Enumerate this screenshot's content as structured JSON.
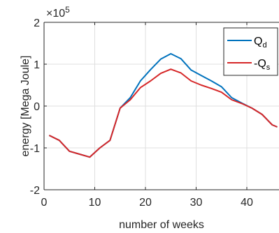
{
  "chart_data": {
    "type": "line",
    "title": "",
    "xlabel": "number of weeks",
    "ylabel": "energy [Mega Joule]",
    "y_exponent_base": "×10",
    "y_exponent_power": "5",
    "xlim": [
      0,
      46
    ],
    "ylim": [
      -2,
      2
    ],
    "xticks": [
      0,
      10,
      20,
      30,
      40
    ],
    "xtick_labels": [
      "0",
      "10",
      "20",
      "30",
      "40"
    ],
    "yticks": [
      -2,
      -1,
      0,
      1,
      2
    ],
    "ytick_labels": [
      "-2",
      "-1",
      "0",
      "1",
      "2"
    ],
    "grid": true,
    "legend_position": "top-right",
    "series": [
      {
        "name": "Q",
        "name_subscript": "d",
        "color": "#0072BD",
        "x": [
          1,
          3,
          5,
          7,
          9,
          11,
          13,
          15,
          17,
          19,
          21,
          23,
          25,
          27,
          29,
          31,
          33,
          35,
          37,
          39,
          41,
          43,
          45,
          46
        ],
        "y": [
          -0.7,
          -0.82,
          -1.08,
          -1.15,
          -1.22,
          -1.0,
          -0.82,
          -0.05,
          0.2,
          0.6,
          0.87,
          1.12,
          1.25,
          1.13,
          0.86,
          0.73,
          0.6,
          0.46,
          0.2,
          0.07,
          -0.05,
          -0.2,
          -0.45,
          -0.5
        ]
      },
      {
        "name": "-Q",
        "name_subscript": "s",
        "color": "#D62728",
        "x": [
          1,
          3,
          5,
          7,
          9,
          11,
          13,
          15,
          17,
          19,
          21,
          23,
          25,
          27,
          29,
          31,
          33,
          35,
          37,
          39,
          41,
          43,
          45,
          46
        ],
        "y": [
          -0.7,
          -0.82,
          -1.08,
          -1.15,
          -1.22,
          -1.0,
          -0.82,
          -0.05,
          0.15,
          0.44,
          0.6,
          0.78,
          0.88,
          0.79,
          0.6,
          0.5,
          0.42,
          0.33,
          0.15,
          0.06,
          -0.05,
          -0.2,
          -0.45,
          -0.5
        ]
      }
    ]
  }
}
